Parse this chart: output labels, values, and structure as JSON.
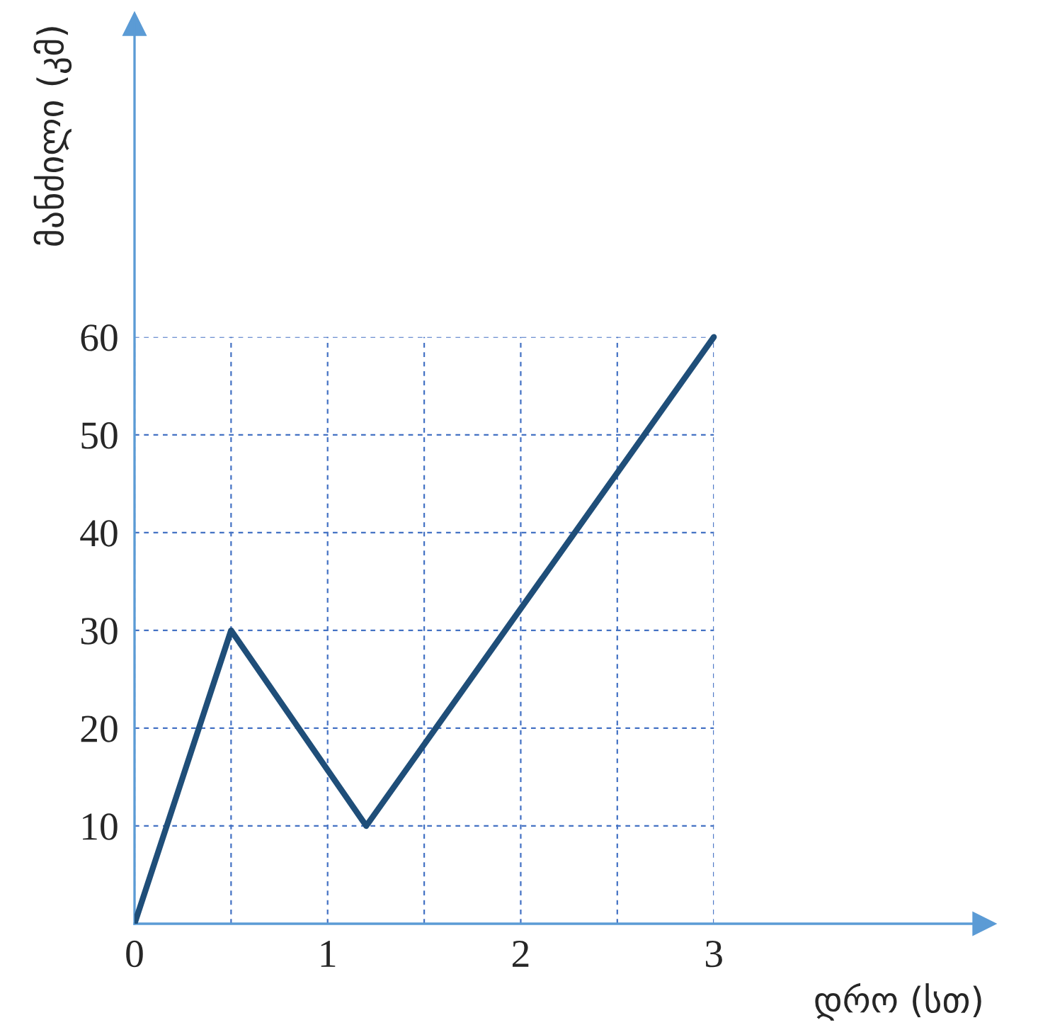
{
  "chart_data": {
    "type": "line",
    "xlabel": "დრო (სთ)",
    "ylabel": "მანძილი (კმ)",
    "x": [
      0,
      0.5,
      1.2,
      3
    ],
    "series": [
      {
        "color": "#1f4e79",
        "values": [
          0,
          30,
          10,
          60
        ]
      }
    ],
    "xlim": [
      0,
      4.4
    ],
    "ylim": [
      0,
      92
    ],
    "xticks": [
      0,
      {
        "value": 0.5,
        "label": null
      },
      1,
      {
        "value": 1.5,
        "label": null
      },
      2,
      {
        "value": 2.5,
        "label": null
      },
      3
    ],
    "yticks": [
      {
        "value": 0,
        "label": null
      },
      10,
      20,
      30,
      40,
      50,
      60
    ],
    "grid": true,
    "marker": "none",
    "line_style": "solid"
  }
}
